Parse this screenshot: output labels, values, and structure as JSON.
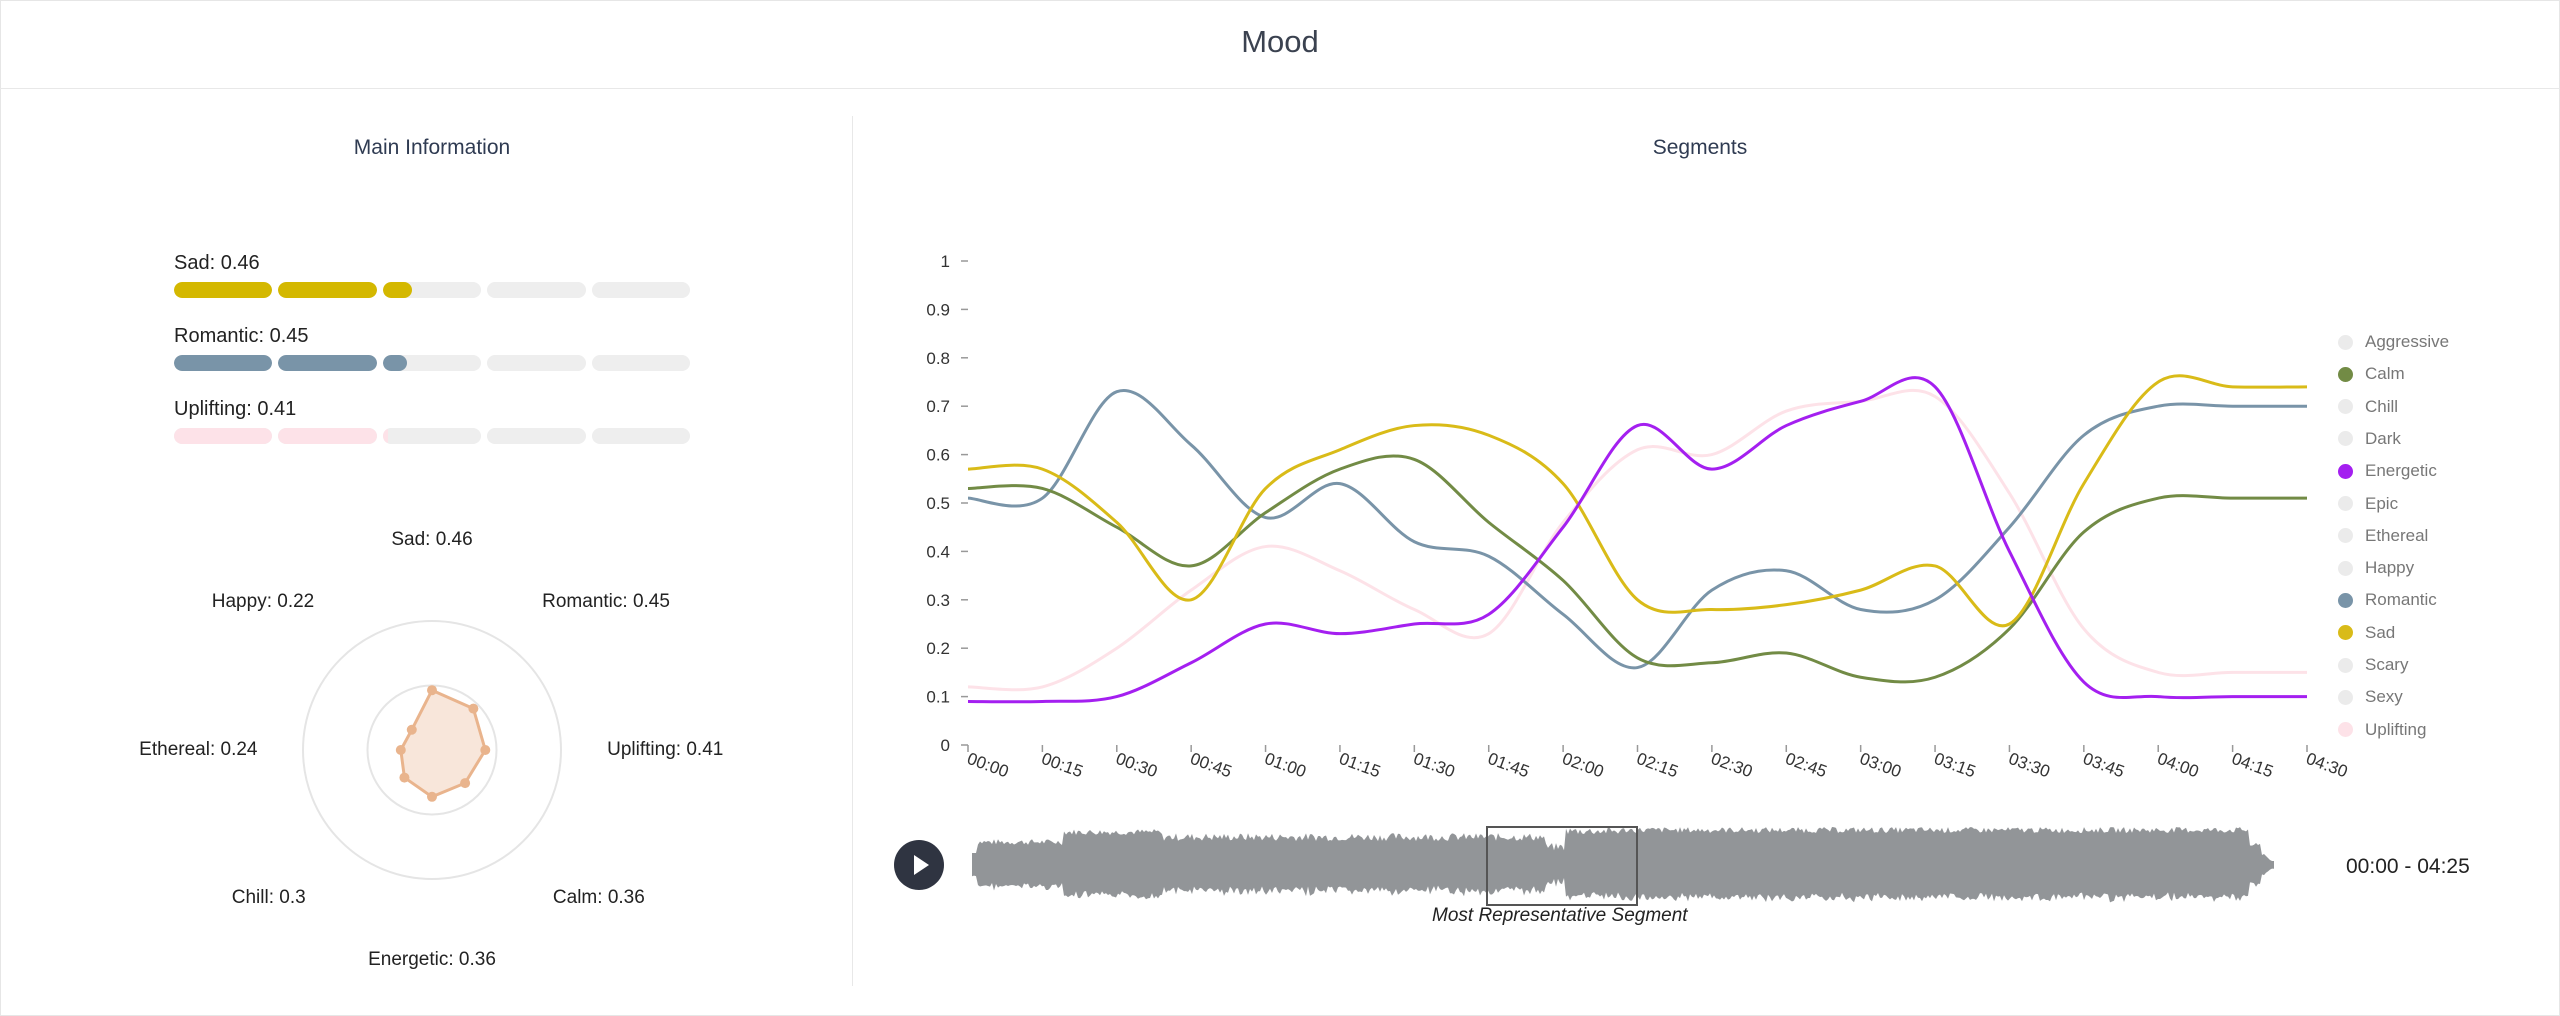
{
  "header": {
    "title": "Mood"
  },
  "main_info": {
    "title": "Main Information",
    "bars": [
      {
        "label": "Sad: 0.46",
        "value": 0.46,
        "color": "#d4b800"
      },
      {
        "label": "Romantic: 0.45",
        "value": 0.45,
        "color": "#7994a8"
      },
      {
        "label": "Uplifting: 0.41",
        "value": 0.41,
        "color": "#fde2e8"
      }
    ],
    "radar": {
      "labels": [
        {
          "text": "Sad: 0.46",
          "value": 0.46
        },
        {
          "text": "Romantic: 0.45",
          "value": 0.45
        },
        {
          "text": "Uplifting: 0.41",
          "value": 0.41
        },
        {
          "text": "Calm: 0.36",
          "value": 0.36
        },
        {
          "text": "Energetic: 0.36",
          "value": 0.36
        },
        {
          "text": "Chill: 0.3",
          "value": 0.3
        },
        {
          "text": "Ethereal: 0.24",
          "value": 0.24
        },
        {
          "text": "Happy: 0.22",
          "value": 0.22
        }
      ],
      "fill_color": "#f3d2bc",
      "stroke_color": "#e9b48d"
    }
  },
  "segments": {
    "title": "Segments",
    "caption": "Most Representative Segment",
    "time_range": "00:00 - 04:25",
    "play_icon": "play-icon",
    "legend": [
      {
        "name": "Aggressive",
        "color": "#ebebeb"
      },
      {
        "name": "Calm",
        "color": "#728b45"
      },
      {
        "name": "Chill",
        "color": "#ebebeb"
      },
      {
        "name": "Dark",
        "color": "#ebebeb"
      },
      {
        "name": "Energetic",
        "color": "#a41ff0"
      },
      {
        "name": "Epic",
        "color": "#ebebeb"
      },
      {
        "name": "Ethereal",
        "color": "#ebebeb"
      },
      {
        "name": "Happy",
        "color": "#ebebeb"
      },
      {
        "name": "Romantic",
        "color": "#7994a8"
      },
      {
        "name": "Sad",
        "color": "#d9bb18"
      },
      {
        "name": "Scary",
        "color": "#ebebeb"
      },
      {
        "name": "Sexy",
        "color": "#ebebeb"
      },
      {
        "name": "Uplifting",
        "color": "#fde2e8"
      }
    ]
  },
  "chart_data": {
    "type": "line",
    "title": "",
    "xlabel": "",
    "ylabel": "",
    "x": [
      "00:00",
      "00:15",
      "00:30",
      "00:45",
      "01:00",
      "01:15",
      "01:30",
      "01:45",
      "02:00",
      "02:15",
      "02:30",
      "02:45",
      "03:00",
      "03:15",
      "03:30",
      "03:45",
      "04:00",
      "04:15",
      "04:30"
    ],
    "ylim": [
      0,
      1
    ],
    "yticks": [
      "0",
      "0.1",
      "0.2",
      "0.3",
      "0.4",
      "0.5",
      "0.6",
      "0.7",
      "0.8",
      "0.9",
      "1"
    ],
    "grid": false,
    "legend": "right",
    "series": [
      {
        "name": "Calm",
        "color": "#728b45",
        "values": [
          0.53,
          0.53,
          0.45,
          0.37,
          0.48,
          0.57,
          0.59,
          0.46,
          0.34,
          0.18,
          0.17,
          0.19,
          0.14,
          0.14,
          0.24,
          0.44,
          0.51,
          0.51,
          0.51
        ]
      },
      {
        "name": "Energetic",
        "color": "#a41ff0",
        "values": [
          0.09,
          0.09,
          0.1,
          0.17,
          0.25,
          0.23,
          0.25,
          0.27,
          0.45,
          0.66,
          0.57,
          0.66,
          0.71,
          0.74,
          0.4,
          0.13,
          0.1,
          0.1,
          0.1
        ]
      },
      {
        "name": "Romantic",
        "color": "#7994a8",
        "values": [
          0.51,
          0.51,
          0.73,
          0.62,
          0.47,
          0.54,
          0.42,
          0.39,
          0.27,
          0.16,
          0.32,
          0.36,
          0.28,
          0.3,
          0.45,
          0.64,
          0.7,
          0.7,
          0.7
        ]
      },
      {
        "name": "Sad",
        "color": "#d9bb18",
        "values": [
          0.57,
          0.57,
          0.46,
          0.3,
          0.53,
          0.61,
          0.66,
          0.64,
          0.54,
          0.3,
          0.28,
          0.29,
          0.32,
          0.37,
          0.25,
          0.54,
          0.75,
          0.74,
          0.74
        ]
      },
      {
        "name": "Uplifting",
        "color": "#fde2e8",
        "values": [
          0.12,
          0.12,
          0.2,
          0.32,
          0.41,
          0.36,
          0.28,
          0.23,
          0.46,
          0.61,
          0.6,
          0.69,
          0.71,
          0.72,
          0.52,
          0.24,
          0.15,
          0.15,
          0.15
        ]
      }
    ]
  }
}
